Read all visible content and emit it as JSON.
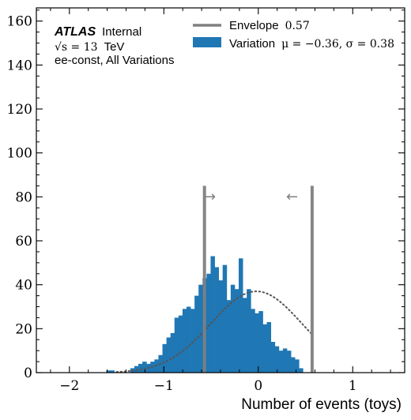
{
  "chart_data": {
    "type": "histogram",
    "xlabel": "Number of events (toys)",
    "ylabel": "",
    "xlim": [
      -2.35,
      1.55
    ],
    "ylim": [
      0,
      166
    ],
    "x_ticks": [
      -2,
      -1,
      0,
      1
    ],
    "x_tick_labels": [
      "−2",
      "−1",
      "0",
      "1"
    ],
    "y_ticks": [
      0,
      20,
      40,
      60,
      80,
      100,
      120,
      140,
      160
    ],
    "y_tick_labels": [
      "0",
      "20",
      "40",
      "60",
      "80",
      "100",
      "120",
      "140",
      "160"
    ],
    "bin_width": 0.0425,
    "bin_edges_start": -1.61,
    "counts": [
      1,
      1,
      0,
      0,
      0,
      0,
      2,
      3,
      4,
      5,
      4,
      5,
      6,
      8,
      13,
      16,
      18,
      25,
      26,
      29,
      30,
      29,
      35,
      40,
      43,
      45,
      53,
      48,
      42,
      49,
      33,
      40,
      38,
      52,
      34,
      38,
      29,
      27,
      28,
      22,
      23,
      14,
      12,
      10,
      11,
      10,
      7,
      6,
      2
    ],
    "fit_curve": {
      "mu": -0.02,
      "sigma": 0.48,
      "amplitude": 37,
      "x_range": [
        -1.5,
        0.58
      ],
      "style": "dotted",
      "color": "#555555"
    },
    "envelope": {
      "value": 0.57,
      "lines": [
        -0.57,
        0.57
      ],
      "line_top": 85
    },
    "series": [
      {
        "name": "Envelope",
        "value_label": "0.57",
        "color": "#808080"
      },
      {
        "name": "Variation",
        "stats_label": "μ = −0.36, σ = 0.38",
        "color": "#1f77b4"
      }
    ],
    "annotations": {
      "atlas": "ATLAS",
      "internal": "Internal",
      "energy_prefix": "√s = 13",
      "energy_unit": "TeV",
      "selection": "ee-const, All Variations",
      "arrow_right": "→",
      "arrow_left": "←"
    },
    "grid": false,
    "legend_position": "top-right"
  }
}
